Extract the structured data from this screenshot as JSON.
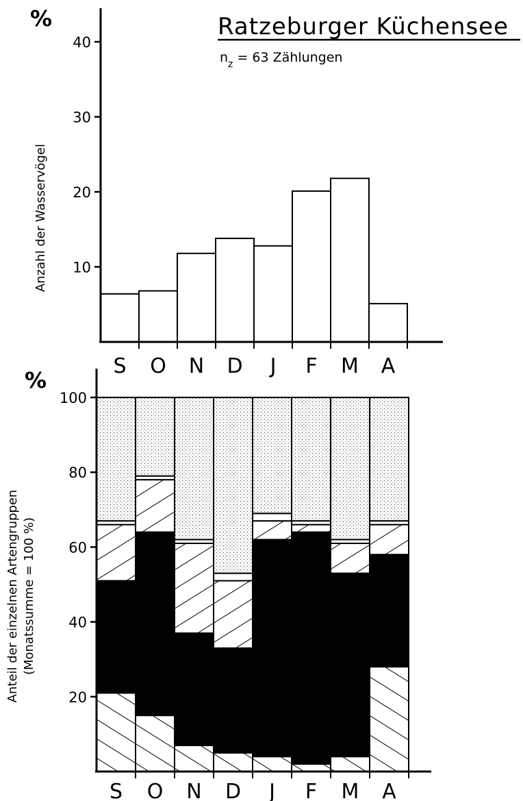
{
  "title": "Ratzeburger Küchensee",
  "subtitle": {
    "prefix": "n",
    "subscript": "z",
    "text": " =  63 Zählungen"
  },
  "colors": {
    "ink": "#000000",
    "paper": "#ffffff",
    "stipple": "#9a9a9a"
  },
  "chart_data": [
    {
      "type": "bar",
      "categories": [
        "S",
        "O",
        "N",
        "D",
        "J",
        "F",
        "M",
        "A"
      ],
      "values": [
        6.4,
        6.8,
        11.8,
        13.8,
        12.8,
        20.1,
        21.8,
        5.1
      ],
      "unit": "%",
      "ylabel": "Anzahl der Wasservögel",
      "ylim": [
        0,
        43
      ],
      "yticks": [
        10,
        20,
        30,
        40
      ],
      "grid": false
    },
    {
      "type": "bar",
      "stacked": true,
      "categories": [
        "S",
        "O",
        "N",
        "D",
        "J",
        "F",
        "M",
        "A"
      ],
      "unit": "%",
      "ylabel": [
        "Anteil der einzelnen Artengruppen",
        "(Monatssumme = 100 %)"
      ],
      "ylim": [
        0,
        110
      ],
      "yticks": [
        20,
        40,
        60,
        80,
        100
      ],
      "grid": false,
      "series": [
        {
          "pattern": "hatch-forward",
          "values": [
            21,
            15,
            7,
            5,
            4,
            2,
            4,
            28
          ]
        },
        {
          "pattern": "solid",
          "values": [
            30,
            49,
            30,
            28,
            58,
            62,
            49,
            30
          ]
        },
        {
          "pattern": "hatch-back",
          "values": [
            15,
            14,
            24,
            18,
            5,
            2,
            8,
            8
          ]
        },
        {
          "pattern": "white",
          "values": [
            1,
            1,
            1,
            2,
            2,
            1,
            1,
            1
          ]
        },
        {
          "pattern": "stipple",
          "values": [
            33,
            21,
            38,
            47,
            31,
            33,
            38,
            33
          ]
        }
      ]
    }
  ]
}
